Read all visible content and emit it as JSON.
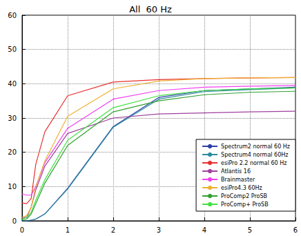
{
  "chart_data": {
    "type": "line",
    "title": "All  60 Hz",
    "x": [
      0,
      0.1,
      0.2,
      0.3,
      0.5,
      1,
      2,
      3,
      4,
      5,
      6
    ],
    "series": [
      {
        "name": "Spectrum2 normal 60 Hz",
        "color": "#2b3fa6",
        "values": [
          0,
          0,
          0.2,
          0.5,
          2,
          9.5,
          27.5,
          36,
          38,
          38.5,
          39
        ]
      },
      {
        "name": "Spectrum4 normal 60Hz",
        "color": "#2a8c9c",
        "values": [
          0,
          0,
          0.2,
          0.5,
          2,
          9.3,
          27.3,
          35.5,
          37.7,
          38.3,
          38.8
        ]
      },
      {
        "name": "esiPro 2.2 normal 60 Hz",
        "color": "#e83030",
        "values": [
          5.2,
          5,
          6.5,
          16.5,
          26,
          36.5,
          40.5,
          41.2,
          41.5,
          41.7,
          41.8
        ]
      },
      {
        "name": "Atlantis 16",
        "color": "#a040a0",
        "values": [
          1,
          1,
          4,
          9,
          16,
          25.5,
          30,
          31.2,
          31.5,
          31.8,
          32
        ]
      },
      {
        "name": "Brainmaster",
        "color": "#f040f0",
        "values": [
          7.8,
          7.5,
          7.5,
          10,
          17,
          27,
          35.5,
          38,
          39,
          39.3,
          39.5
        ]
      },
      {
        "name": "esiPro4.3 60Hz",
        "color": "#f0b030",
        "values": [
          1,
          1.5,
          4,
          10,
          17.5,
          30.5,
          38.5,
          40.8,
          41.5,
          41.7,
          41.8
        ]
      },
      {
        "name": "ProComp2 ProSB",
        "color": "#30a030",
        "values": [
          0.3,
          0.5,
          2,
          5,
          11,
          22,
          31.8,
          35,
          36.8,
          37.5,
          37.8
        ]
      },
      {
        "name": "ProComp+ ProSB",
        "color": "#40e040",
        "values": [
          0.5,
          1,
          2.5,
          6,
          12,
          23.5,
          33,
          36.5,
          38,
          38.5,
          38.8
        ]
      }
    ],
    "xlim": [
      0,
      6
    ],
    "xticks": [
      0,
      1,
      2,
      3,
      4,
      5,
      6
    ],
    "ylim": [
      0,
      60
    ],
    "yticks": [
      0,
      10,
      20,
      30,
      40,
      50,
      60
    ],
    "grid": true,
    "legend": "lower right"
  }
}
